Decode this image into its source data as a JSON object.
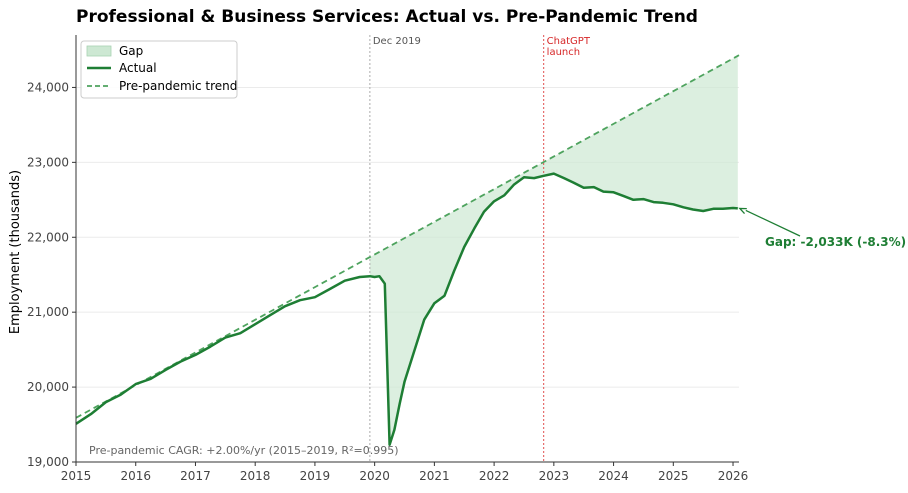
{
  "chart_data": {
    "type": "line",
    "title": "Professional & Business Services: Actual vs. Pre-Pandemic Trend",
    "ylabel": "Employment (thousands)",
    "xlabel": "",
    "xlim": [
      2015.0,
      2026.1
    ],
    "ylim": [
      19000,
      24700
    ],
    "x_ticks": [
      2015,
      2016,
      2017,
      2018,
      2019,
      2020,
      2021,
      2022,
      2023,
      2024,
      2025,
      2026
    ],
    "y_ticks": [
      19000,
      20000,
      21000,
      22000,
      23000,
      24000
    ],
    "y_tick_labels": [
      "19,000",
      "20,000",
      "21,000",
      "22,000",
      "23,000",
      "24,000"
    ],
    "grid": "horizontal",
    "legend_position": "top-left",
    "legend": [
      "Gap",
      "Actual",
      "Pre-pandemic trend"
    ],
    "colors": {
      "actual": "#1e7e34",
      "trend": "#4ea35e",
      "gap_fill": "#cde8d3",
      "chatgpt_line": "#e05050",
      "chatgpt_text": "#d62728",
      "dec2019_line": "#aaaaaa",
      "dec2019_text": "#555555",
      "gap_label": "#1e7e34"
    },
    "series": [
      {
        "name": "Actual",
        "x": [
          2015.0,
          2015.25,
          2015.5,
          2015.75,
          2016.0,
          2016.25,
          2016.5,
          2016.75,
          2017.0,
          2017.25,
          2017.5,
          2017.75,
          2018.0,
          2018.25,
          2018.5,
          2018.75,
          2019.0,
          2019.25,
          2019.5,
          2019.75,
          2019.92,
          2020.0,
          2020.08,
          2020.17,
          2020.25,
          2020.33,
          2020.42,
          2020.5,
          2020.67,
          2020.83,
          2021.0,
          2021.17,
          2021.33,
          2021.5,
          2021.67,
          2021.83,
          2022.0,
          2022.17,
          2022.33,
          2022.5,
          2022.67,
          2022.83,
          2023.0,
          2023.17,
          2023.33,
          2023.5,
          2023.67,
          2023.83,
          2024.0,
          2024.17,
          2024.33,
          2024.5,
          2024.67,
          2024.83,
          2025.0,
          2025.17,
          2025.33,
          2025.5,
          2025.67,
          2025.83,
          2026.0,
          2026.08
        ],
        "values": [
          19510,
          19640,
          19800,
          19900,
          20040,
          20110,
          20230,
          20340,
          20430,
          20540,
          20660,
          20720,
          20840,
          20960,
          21080,
          21160,
          21200,
          21310,
          21420,
          21470,
          21480,
          21470,
          21480,
          21380,
          19230,
          19430,
          19780,
          20070,
          20500,
          20900,
          21120,
          21220,
          21550,
          21870,
          22120,
          22340,
          22480,
          22560,
          22700,
          22800,
          22790,
          22820,
          22850,
          22790,
          22730,
          22660,
          22670,
          22610,
          22600,
          22550,
          22500,
          22510,
          22470,
          22460,
          22440,
          22400,
          22370,
          22350,
          22380,
          22380,
          22390,
          22385
        ]
      },
      {
        "name": "Pre-pandemic trend",
        "x": [
          2015.0,
          2026.1
        ],
        "values": [
          19590,
          24430
        ]
      }
    ],
    "annotations": {
      "dec2019": {
        "x": 2019.92,
        "label": "Dec 2019"
      },
      "chatgpt": {
        "x": 2022.83,
        "label_line1": "ChatGPT",
        "label_line2": "launch"
      },
      "gap": {
        "label": "Gap: -2,033K (-8.3%)",
        "point_x": 2026.08,
        "point_y": 22385
      },
      "footnote": "Pre-pandemic CAGR: +2.00%/yr (2015–2019, R²=0.995)"
    }
  }
}
